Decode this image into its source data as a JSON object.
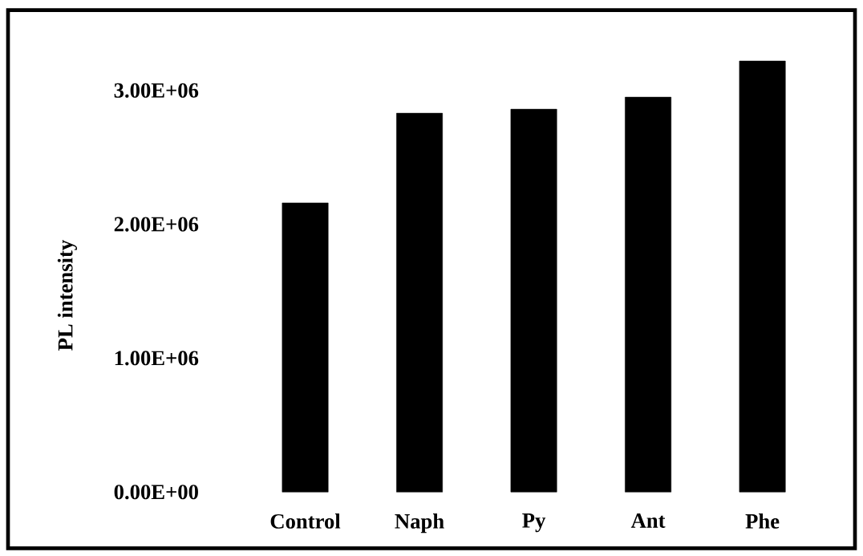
{
  "chart_data": {
    "type": "bar",
    "ylabel": "PL intensity",
    "categories": [
      "Control",
      "Naph",
      "Py",
      "Ant",
      "Phe"
    ],
    "values": [
      2160000,
      2830000,
      2860000,
      2950000,
      3220000
    ],
    "color": "#000000",
    "ylim": [
      -420000,
      3600000
    ],
    "yticks": [
      {
        "value": 0,
        "label": "0.00E+00"
      },
      {
        "value": 1000000,
        "label": "1.00E+06"
      },
      {
        "value": 2000000,
        "label": "2.00E+06"
      },
      {
        "value": 3000000,
        "label": "3.00E+06"
      }
    ],
    "grid": false
  }
}
